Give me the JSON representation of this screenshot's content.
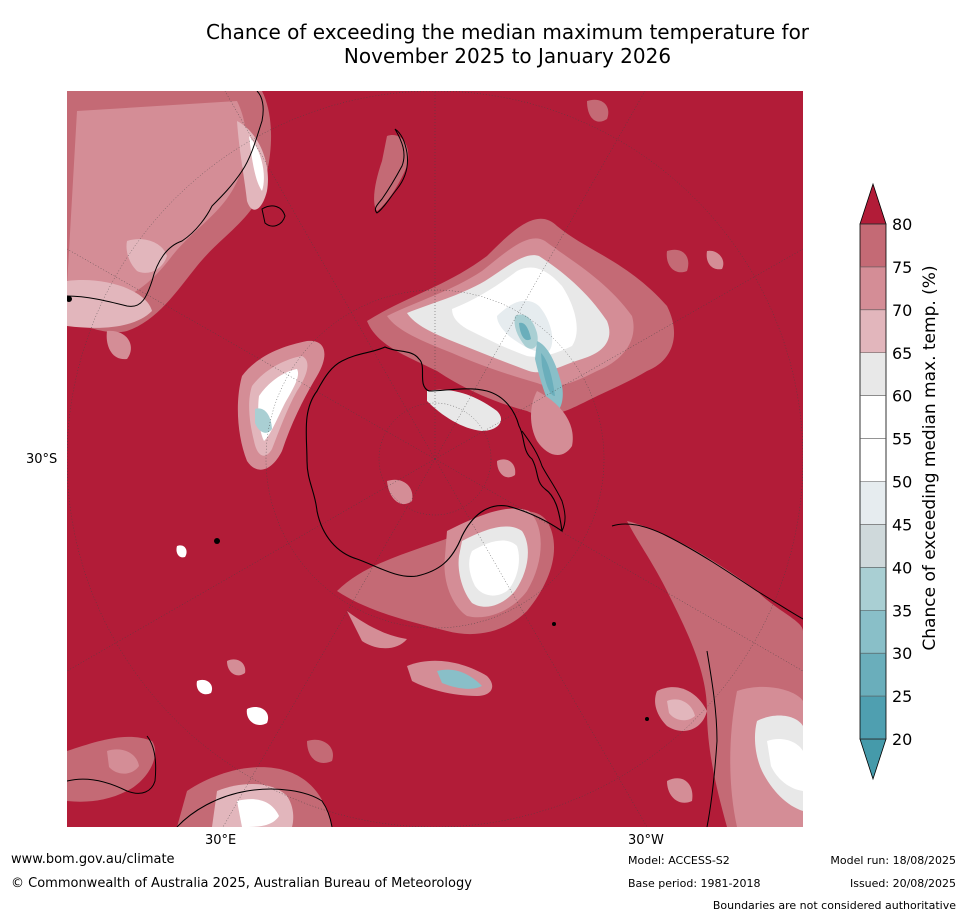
{
  "title": {
    "line1": "Chance of exceeding the median maximum temperature for",
    "line2": "November 2025 to January 2026"
  },
  "axes": {
    "lat_label": "30°S",
    "lon_labels": {
      "east": "30°E",
      "west": "30°W"
    }
  },
  "colorbar": {
    "title": "Chance of exceeding median max. temp. (%)",
    "levels": [
      20,
      25,
      30,
      35,
      40,
      45,
      50,
      55,
      60,
      65,
      70,
      75,
      80
    ],
    "colors": [
      "#4f9fb0",
      "#6aaebb",
      "#89bfc8",
      "#a9cfd3",
      "#cfd9db",
      "#e6ecef",
      "#ffffff",
      "#ffffff",
      "#e8e8e8",
      "#e2b6bc",
      "#d48d96",
      "#c46a75",
      "#b94b59"
    ],
    "under_color": "#459aaa",
    "over_color": "#b21c38"
  },
  "footer": {
    "website": "www.bom.gov.au/climate",
    "copyright": "© Commonwealth of Australia 2025, Australian Bureau of Meteorology",
    "model": "Model: ACCESS-S2",
    "base_period": "Base period: 1981-2018",
    "model_run": "Model run: 18/08/2025",
    "issued": "Issued: 20/08/2025",
    "disclaimer": "Boundaries are not considered authoritative"
  }
}
